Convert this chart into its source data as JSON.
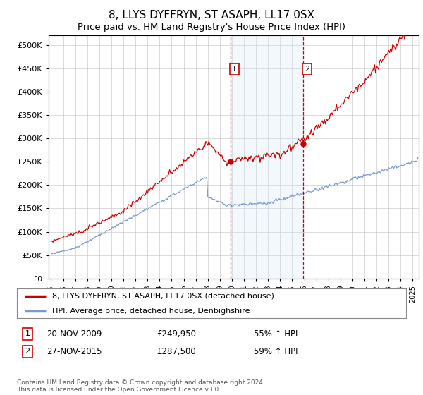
{
  "title": "8, LLYS DYFFRYN, ST ASAPH, LL17 0SX",
  "subtitle": "Price paid vs. HM Land Registry's House Price Index (HPI)",
  "ylabel_ticks": [
    0,
    50000,
    100000,
    150000,
    200000,
    250000,
    300000,
    350000,
    400000,
    450000,
    500000
  ],
  "ylim": [
    0,
    520000
  ],
  "xlim_start": 1994.8,
  "xlim_end": 2025.5,
  "sale1_date": 2009.89,
  "sale1_price": 249950,
  "sale1_label": "1",
  "sale1_text": "20-NOV-2009",
  "sale1_amount": "£249,950",
  "sale1_pct": "55% ↑ HPI",
  "sale2_date": 2015.92,
  "sale2_price": 287500,
  "sale2_label": "2",
  "sale2_text": "27-NOV-2015",
  "sale2_amount": "£287,500",
  "sale2_pct": "59% ↑ HPI",
  "red_line_color": "#cc0000",
  "blue_line_color": "#7799cc",
  "shade_color": "#d8eaf8",
  "dashed_color": "#cc0000",
  "legend_label1": "8, LLYS DYFFRYN, ST ASAPH, LL17 0SX (detached house)",
  "legend_label2": "HPI: Average price, detached house, Denbighshire",
  "footer": "Contains HM Land Registry data © Crown copyright and database right 2024.\nThis data is licensed under the Open Government Licence v3.0.",
  "background_color": "#ffffff",
  "grid_color": "#cccccc"
}
